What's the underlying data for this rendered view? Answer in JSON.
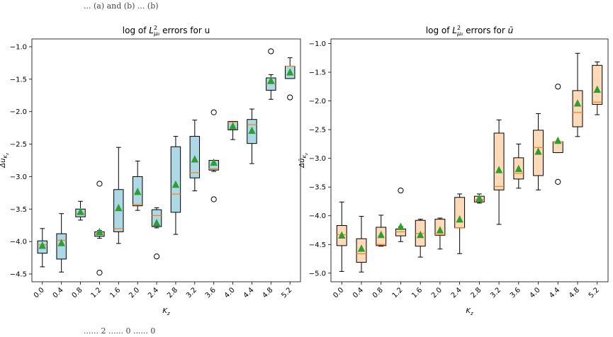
{
  "top_caption": "... (a) and (b) ... (b)",
  "bottom_caption": "...... 2 ...... 0 ...... 0",
  "chart_data": [
    {
      "type": "box",
      "title": "log of L²μ₀ errors for u",
      "xlabel": "K_z",
      "ylabel": "Δu_{K_z}",
      "ylim": [
        -4.62,
        -0.88
      ],
      "yticks": [
        -1.0,
        -1.5,
        -2.0,
        -2.5,
        -3.0,
        -3.5,
        -4.0,
        -4.5
      ],
      "ytick_labels": [
        "−1.0",
        "−1.5",
        "−2.0",
        "−2.5",
        "−3.0",
        "−3.5",
        "−4.0",
        "−4.5"
      ],
      "box_color": "#add8e6",
      "categories": [
        "0.0",
        "0.4",
        "0.8",
        "1.2",
        "1.6",
        "2.0",
        "2.4",
        "2.8",
        "3.2",
        "3.6",
        "4.0",
        "4.4",
        "4.8",
        "5.2"
      ],
      "boxes": [
        {
          "q1": -4.18,
          "med": -4.05,
          "q3": -3.99,
          "wlo": -4.39,
          "whi": -3.8,
          "mean": -4.07,
          "outliers": []
        },
        {
          "q1": -4.27,
          "med": -3.98,
          "q3": -3.88,
          "wlo": -4.47,
          "whi": -3.57,
          "mean": -4.03,
          "outliers": []
        },
        {
          "q1": -3.62,
          "med": -3.57,
          "q3": -3.5,
          "wlo": -3.67,
          "whi": -3.38,
          "mean": -3.55,
          "outliers": []
        },
        {
          "q1": -3.92,
          "med": -3.88,
          "q3": -3.85,
          "wlo": -3.95,
          "whi": -3.83,
          "mean": -3.86,
          "outliers": [
            -3.11,
            -4.48
          ]
        },
        {
          "q1": -3.85,
          "med": -3.8,
          "q3": -3.2,
          "wlo": -4.03,
          "whi": -2.55,
          "mean": -3.49,
          "outliers": []
        },
        {
          "q1": -3.45,
          "med": -3.43,
          "q3": -3.0,
          "wlo": -3.52,
          "whi": -2.76,
          "mean": -3.24,
          "outliers": []
        },
        {
          "q1": -3.77,
          "med": -3.6,
          "q3": -3.51,
          "wlo": -3.79,
          "whi": -3.48,
          "mean": -3.72,
          "outliers": [
            -4.23
          ]
        },
        {
          "q1": -3.55,
          "med": -3.27,
          "q3": -2.54,
          "wlo": -3.89,
          "whi": -2.38,
          "mean": -3.13,
          "outliers": []
        },
        {
          "q1": -3.02,
          "med": -2.94,
          "q3": -2.38,
          "wlo": -3.22,
          "whi": -2.13,
          "mean": -2.74,
          "outliers": []
        },
        {
          "q1": -2.9,
          "med": -2.88,
          "q3": -2.75,
          "wlo": -2.92,
          "whi": -2.75,
          "mean": -2.79,
          "outliers": [
            -2.01,
            -3.35
          ]
        },
        {
          "q1": -2.28,
          "med": -2.16,
          "q3": -2.15,
          "wlo": -2.43,
          "whi": -2.15,
          "mean": -2.23,
          "outliers": []
        },
        {
          "q1": -2.49,
          "med": -2.2,
          "q3": -2.12,
          "wlo": -2.8,
          "whi": -1.96,
          "mean": -2.3,
          "outliers": []
        },
        {
          "q1": -1.67,
          "med": -1.57,
          "q3": -1.48,
          "wlo": -1.81,
          "whi": -1.43,
          "mean": -1.53,
          "outliers": [
            -1.07
          ]
        },
        {
          "q1": -1.49,
          "med": -1.3,
          "q3": -1.3,
          "wlo": -1.49,
          "whi": -1.17,
          "mean": -1.4,
          "outliers": [
            -1.78
          ]
        }
      ]
    },
    {
      "type": "box",
      "title": "log of L²μ₀ errors for ū",
      "xlabel": "K_z",
      "ylabel": "Δū_{K_z}",
      "ylim": [
        -5.15,
        -0.92
      ],
      "yticks": [
        -1.0,
        -1.5,
        -2.0,
        -2.5,
        -3.0,
        -3.5,
        -4.0,
        -4.5,
        -5.0
      ],
      "ytick_labels": [
        "−1.0",
        "−1.5",
        "−2.0",
        "−2.5",
        "−3.0",
        "−3.5",
        "−4.0",
        "−4.5",
        "−5.0"
      ],
      "box_color": "#ffdab9",
      "categories": [
        "0.0",
        "0.4",
        "0.8",
        "1.2",
        "1.6",
        "2.0",
        "2.4",
        "2.8",
        "3.2",
        "3.6",
        "4.0",
        "4.4",
        "4.8",
        "5.2"
      ],
      "boxes": [
        {
          "q1": -4.52,
          "med": -4.33,
          "q3": -4.17,
          "wlo": -4.97,
          "whi": -3.76,
          "mean": -4.35,
          "outliers": []
        },
        {
          "q1": -4.81,
          "med": -4.66,
          "q3": -4.4,
          "wlo": -4.98,
          "whi": -4.01,
          "mean": -4.58,
          "outliers": []
        },
        {
          "q1": -4.52,
          "med": -4.5,
          "q3": -4.2,
          "wlo": -4.53,
          "whi": -3.99,
          "mean": -4.34,
          "outliers": []
        },
        {
          "q1": -4.35,
          "med": -4.28,
          "q3": -4.23,
          "wlo": -4.45,
          "whi": -4.19,
          "mean": -4.2,
          "outliers": [
            -3.56
          ]
        },
        {
          "q1": -4.53,
          "med": -4.31,
          "q3": -4.08,
          "wlo": -4.72,
          "whi": -4.06,
          "mean": -4.34,
          "outliers": []
        },
        {
          "q1": -4.34,
          "med": -4.33,
          "q3": -4.06,
          "wlo": -4.58,
          "whi": -4.04,
          "mean": -4.26,
          "outliers": []
        },
        {
          "q1": -4.21,
          "med": -4.21,
          "q3": -3.68,
          "wlo": -4.66,
          "whi": -3.62,
          "mean": -4.07,
          "outliers": []
        },
        {
          "q1": -3.76,
          "med": -3.72,
          "q3": -3.66,
          "wlo": -3.78,
          "whi": -3.62,
          "mean": -3.7,
          "outliers": []
        },
        {
          "q1": -3.55,
          "med": -3.49,
          "q3": -2.56,
          "wlo": -4.15,
          "whi": -2.33,
          "mean": -3.21,
          "outliers": []
        },
        {
          "q1": -3.36,
          "med": -3.26,
          "q3": -2.99,
          "wlo": -3.52,
          "whi": -2.75,
          "mean": -3.19,
          "outliers": []
        },
        {
          "q1": -3.3,
          "med": -2.81,
          "q3": -2.51,
          "wlo": -3.55,
          "whi": -2.22,
          "mean": -2.89,
          "outliers": []
        },
        {
          "q1": -2.9,
          "med": -2.71,
          "q3": -2.71,
          "wlo": -2.9,
          "whi": -2.71,
          "mean": -2.7,
          "outliers": [
            -1.75,
            -3.41
          ]
        },
        {
          "q1": -2.45,
          "med": -2.2,
          "q3": -1.82,
          "wlo": -2.62,
          "whi": -1.17,
          "mean": -2.05,
          "outliers": []
        },
        {
          "q1": -2.06,
          "med": -2.02,
          "q3": -1.38,
          "wlo": -2.24,
          "whi": -1.32,
          "mean": -1.81,
          "outliers": []
        }
      ]
    }
  ]
}
